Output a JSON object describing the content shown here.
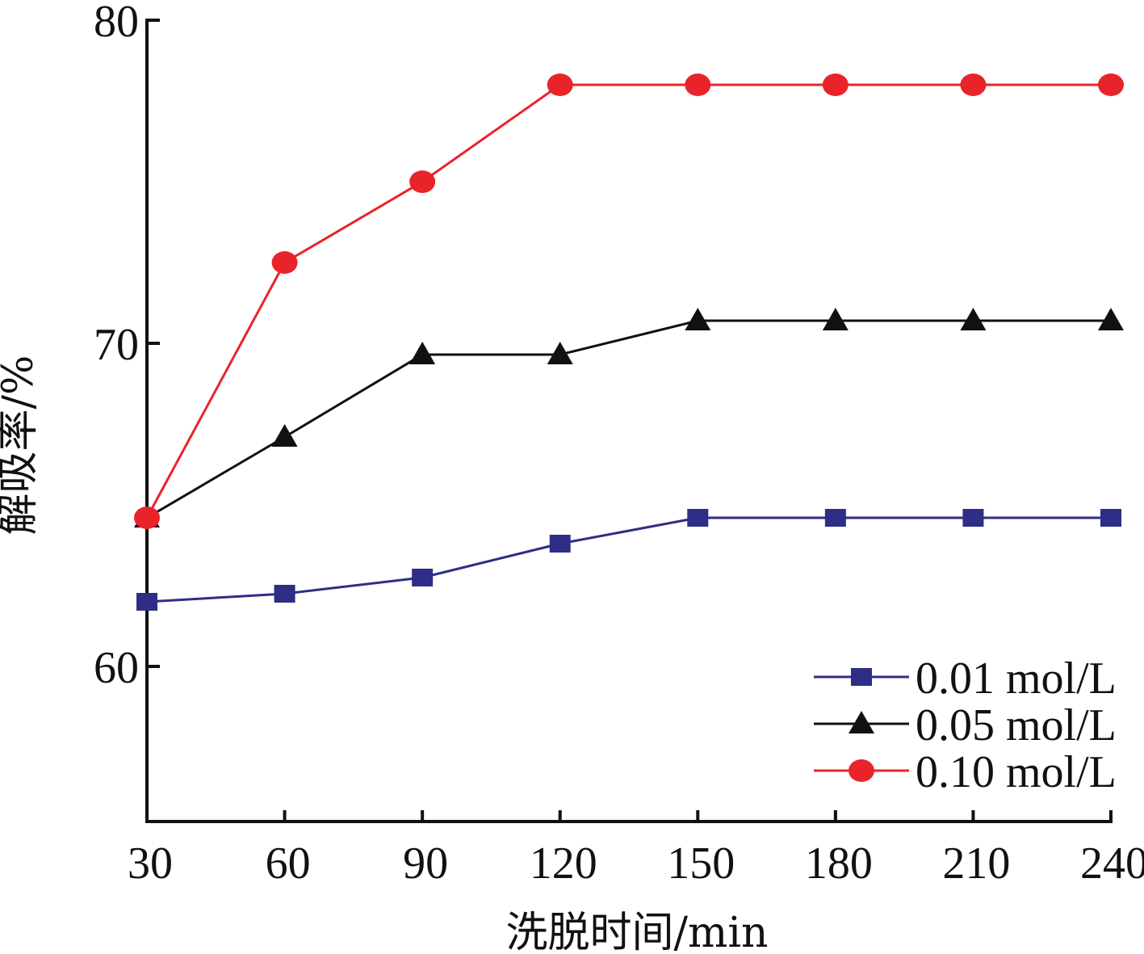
{
  "chart_data": {
    "type": "line",
    "xlabel": "洗脱时间/min",
    "ylabel": "解吸率/%",
    "x": [
      30,
      60,
      90,
      120,
      150,
      180,
      210,
      240
    ],
    "xlim": [
      30,
      240
    ],
    "ylim": [
      55.2,
      80
    ],
    "yticks": [
      60,
      70,
      80
    ],
    "grid": false,
    "legend_position": "bottom-right",
    "series": [
      {
        "name": "0.01 mol/L",
        "color": "#2e2e86",
        "marker": "square",
        "values": [
          62.0,
          62.25,
          62.75,
          63.8,
          64.6,
          64.6,
          64.6,
          64.6
        ]
      },
      {
        "name": "0.05 mol/L",
        "color": "#111111",
        "marker": "triangle",
        "values": [
          64.6,
          67.1,
          69.65,
          69.65,
          70.7,
          70.7,
          70.7,
          70.7
        ]
      },
      {
        "name": "0.10 mol/L",
        "color": "#e8242a",
        "marker": "circle",
        "values": [
          64.6,
          72.5,
          75.0,
          78.0,
          78.0,
          78.0,
          78.0,
          78.0
        ]
      }
    ]
  }
}
